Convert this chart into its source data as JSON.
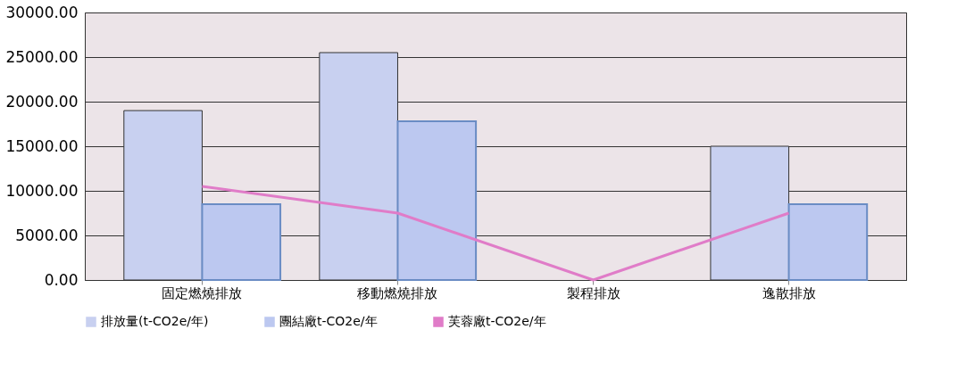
{
  "chart_data": {
    "type": "bar",
    "categories": [
      "固定燃燒排放",
      "移動燃燒排放",
      "製程排放",
      "逸散排放"
    ],
    "series": [
      {
        "name": "排放量(t-CO2e/年)",
        "color": "#c8d0f0",
        "values": [
          19000,
          25500,
          null,
          15000
        ]
      },
      {
        "name": "團結廠t-CO2e/年",
        "color": "#bcc8f0",
        "values": [
          8500,
          17800,
          null,
          8500
        ]
      },
      {
        "name": "芙蓉廠t-CO2e/年",
        "color": "#e07cc8",
        "type": "line",
        "values": [
          10500,
          7500,
          0,
          7500
        ]
      }
    ],
    "ylim": [
      0,
      30000
    ],
    "yticks": [
      {
        "value": 0,
        "label": "0.00"
      },
      {
        "value": 5000,
        "label": "5000.00"
      },
      {
        "value": 10000,
        "label": "10000.00"
      },
      {
        "value": 15000,
        "label": "15000.00"
      },
      {
        "value": 20000,
        "label": "20000.00"
      },
      {
        "value": 25000,
        "label": "25000.00"
      },
      {
        "value": 30000,
        "label": "30000.00"
      }
    ],
    "grid": "y",
    "legend": "bottom",
    "marker": "none"
  }
}
